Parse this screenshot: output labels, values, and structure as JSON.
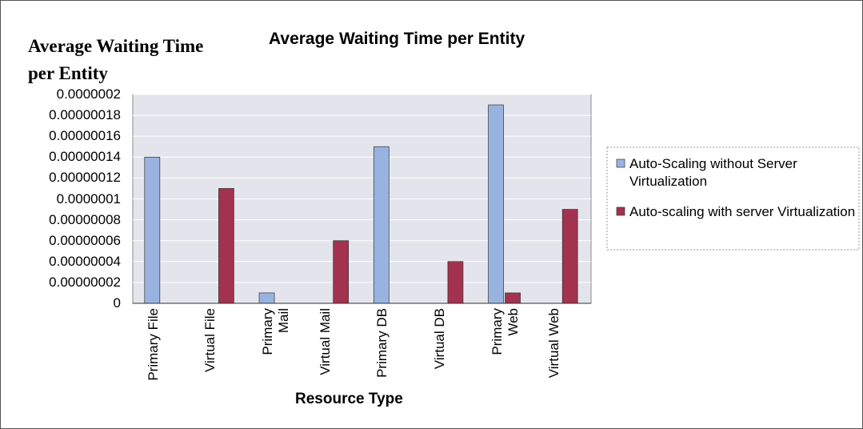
{
  "chart_data": {
    "type": "bar",
    "title": "Average Waiting Time per Entity",
    "y_label": "Average Waiting Time per Entity",
    "x_label": "Resource Type",
    "categories": [
      "Primary File",
      "Virtual File",
      "Primary Mail",
      "Virtual Mail",
      "Primary DB",
      "Virtual DB",
      "Primary Web",
      "Virtual Web"
    ],
    "series": [
      {
        "name": "Auto-Scaling without Server Virtualization",
        "color": "#99b3e0",
        "values": [
          1.4e-07,
          0,
          1e-08,
          0,
          1.5e-07,
          0,
          1.9e-07,
          0
        ]
      },
      {
        "name": "Auto-scaling with server Virtualization",
        "color": "#a3324f",
        "values": [
          0,
          1.1e-07,
          0,
          6e-08,
          0,
          4e-08,
          1e-08,
          9e-08
        ]
      }
    ],
    "ylim": [
      0,
      2e-07
    ],
    "yticks": [
      0,
      {
        "value": 2e-08,
        "label": "0.00000002"
      },
      {
        "value": 4e-08,
        "label": "0.00000004"
      },
      {
        "value": 6e-08,
        "label": "0.00000006"
      },
      {
        "value": 8e-08,
        "label": "0.00000008"
      },
      {
        "value": 1e-07,
        "label": "0.0000001"
      },
      {
        "value": 1.2e-07,
        "label": "0.00000012"
      },
      {
        "value": 1.4e-07,
        "label": "0.00000014"
      },
      {
        "value": 1.6e-07,
        "label": "0.00000016"
      },
      {
        "value": 1.8e-07,
        "label": "0.00000018"
      },
      {
        "value": 2e-07,
        "label": "0.0000002"
      }
    ],
    "grid": true,
    "legend": "right"
  }
}
